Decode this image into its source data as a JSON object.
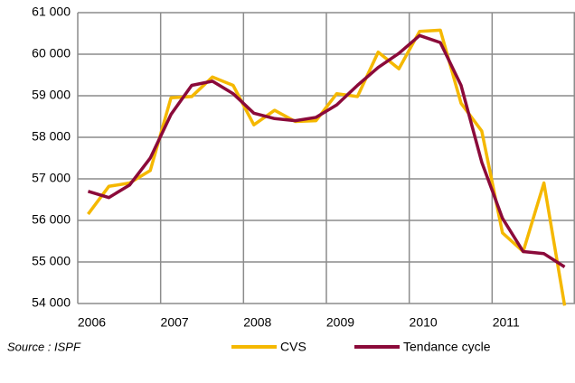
{
  "chart_data": {
    "type": "line",
    "categories": [
      "2006",
      null,
      null,
      null,
      "2007",
      null,
      null,
      null,
      "2008",
      null,
      null,
      null,
      "2009",
      null,
      null,
      null,
      "2010",
      null,
      null,
      null,
      "2011",
      null,
      null,
      null
    ],
    "series": [
      {
        "name": "CVS",
        "color": "#f5b800",
        "values": [
          56150,
          56820,
          56900,
          57200,
          58950,
          58980,
          59450,
          59250,
          58300,
          58650,
          58380,
          58400,
          59050,
          58980,
          60050,
          59650,
          60550,
          60580,
          58820,
          58150,
          55700,
          55250,
          56900,
          53950
        ]
      },
      {
        "name": "Tendance cycle",
        "color": "#8b0a3a",
        "values": [
          56700,
          56550,
          56850,
          57500,
          58550,
          59250,
          59350,
          59050,
          58580,
          58450,
          58400,
          58480,
          58780,
          59250,
          59680,
          60020,
          60450,
          60280,
          59250,
          57400,
          56050,
          55250,
          55200,
          54880
        ]
      }
    ],
    "ylim": [
      54000,
      61000
    ],
    "yticks": [
      {
        "value": 54000,
        "label": "54 000"
      },
      {
        "value": 55000,
        "label": "55 000"
      },
      {
        "value": 56000,
        "label": "56 000"
      },
      {
        "value": 57000,
        "label": "57 000"
      },
      {
        "value": 58000,
        "label": "58 000"
      },
      {
        "value": 59000,
        "label": "59 000"
      },
      {
        "value": 60000,
        "label": "60 000"
      },
      {
        "value": 61000,
        "label": "61 000"
      }
    ],
    "grid": true,
    "source": "Source : ISPF"
  }
}
